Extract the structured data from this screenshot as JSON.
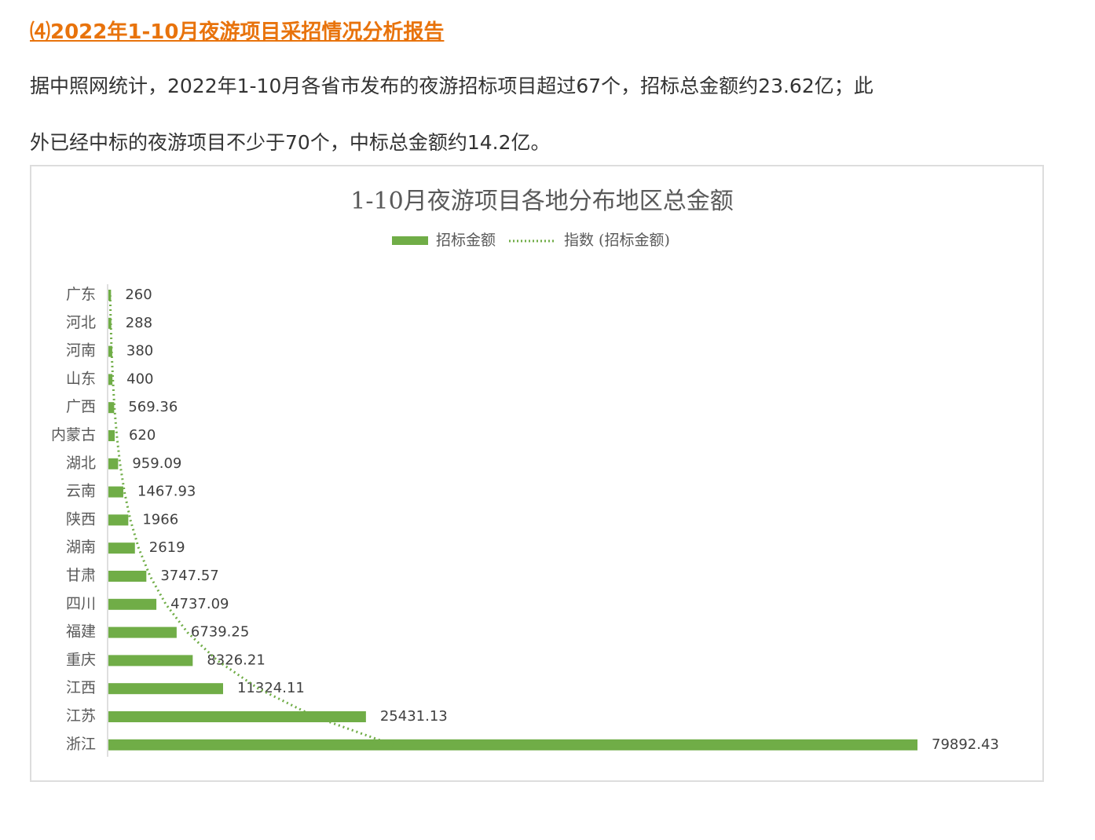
{
  "heading": "⑷2022年1-10月夜游项目采招情况分析报告",
  "paragraph": [
    "据中照网统计，2022年1-10月各省市发布的夜游招标项目超过67个，招标总金额约23.62亿；此",
    "外已经中标的夜游项目不少于70个，中标总金额约14.2亿。"
  ],
  "chart_data": {
    "type": "bar",
    "orientation": "horizontal",
    "title": "1-10月夜游项目各地分布地区总金额",
    "categories": [
      "广东",
      "河北",
      "河南",
      "山东",
      "广西",
      "内蒙古",
      "湖北",
      "云南",
      "陕西",
      "湖南",
      "甘肃",
      "四川",
      "福建",
      "重庆",
      "江西",
      "江苏",
      "浙江"
    ],
    "series": [
      {
        "name": "招标金额",
        "color": "#70ad47",
        "values": [
          260,
          288,
          380,
          400,
          569.36,
          620,
          959.09,
          1467.93,
          1966,
          2619,
          3747.57,
          4737.09,
          6739.25,
          8326.21,
          11324.11,
          25431.13,
          79892.43
        ]
      },
      {
        "name": "指数 (招标金额)",
        "type": "line",
        "style": "dotted",
        "color": "#70ad47",
        "values": [
          170,
          230,
          320,
          440,
          600,
          830,
          1150,
          1580,
          2170,
          2990,
          4120,
          5680,
          7810,
          10760,
          14820,
          20400,
          28090
        ]
      }
    ],
    "legend": "top",
    "grid": false
  }
}
